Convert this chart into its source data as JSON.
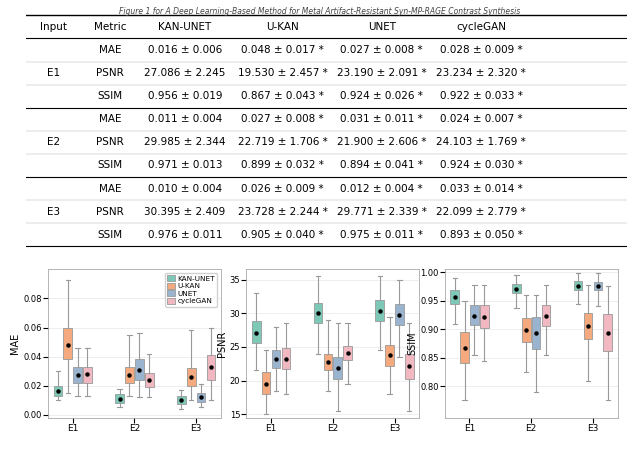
{
  "table": {
    "columns": [
      "Input",
      "Metric",
      "KAN-UNET",
      "U-KAN",
      "UNET",
      "cycleGAN"
    ],
    "rows": [
      [
        "E1",
        "MAE",
        "0.016 ± 0.006",
        "0.048 ± 0.017 *",
        "0.027 ± 0.008 *",
        "0.028 ± 0.009 *"
      ],
      [
        "E1",
        "PSNR",
        "27.086 ± 2.245",
        "19.530 ± 2.457 *",
        "23.190 ± 2.091 *",
        "23.234 ± 2.320 *"
      ],
      [
        "E1",
        "SSIM",
        "0.956 ± 0.019",
        "0.867 ± 0.043 *",
        "0.924 ± 0.026 *",
        "0.922 ± 0.033 *"
      ],
      [
        "E2",
        "MAE",
        "0.011 ± 0.004",
        "0.027 ± 0.008 *",
        "0.031 ± 0.011 *",
        "0.024 ± 0.007 *"
      ],
      [
        "E2",
        "PSNR",
        "29.985 ± 2.344",
        "22.719 ± 1.706 *",
        "21.900 ± 2.606 *",
        "24.103 ± 1.769 *"
      ],
      [
        "E2",
        "SSIM",
        "0.971 ± 0.013",
        "0.899 ± 0.032 *",
        "0.894 ± 0.041 *",
        "0.924 ± 0.030 *"
      ],
      [
        "E3",
        "MAE",
        "0.010 ± 0.004",
        "0.026 ± 0.009 *",
        "0.012 ± 0.004 *",
        "0.033 ± 0.014 *"
      ],
      [
        "E3",
        "PSNR",
        "30.395 ± 2.409",
        "23.728 ± 2.244 *",
        "29.771 ± 2.339 *",
        "22.099 ± 2.779 *"
      ],
      [
        "E3",
        "SSIM",
        "0.976 ± 0.011",
        "0.905 ± 0.040 *",
        "0.975 ± 0.011 *",
        "0.893 ± 0.050 *"
      ]
    ]
  },
  "boxplot": {
    "methods": [
      "KAN-UNET",
      "U-KAN",
      "UNET",
      "cycleGAN"
    ],
    "colors": [
      "#7ec8b8",
      "#f4a97e",
      "#9ab4d0",
      "#f2b8c2"
    ],
    "experiments": [
      "E1",
      "E2",
      "E3"
    ],
    "MAE": {
      "KAN-UNET": {
        "E1": {
          "mean": 0.016,
          "q1": 0.013,
          "q3": 0.02,
          "whislo": 0.01,
          "whishi": 0.03
        },
        "E2": {
          "mean": 0.011,
          "q1": 0.008,
          "q3": 0.014,
          "whislo": 0.005,
          "whishi": 0.018
        },
        "E3": {
          "mean": 0.01,
          "q1": 0.007,
          "q3": 0.013,
          "whislo": 0.004,
          "whishi": 0.017
        }
      },
      "U-KAN": {
        "E1": {
          "mean": 0.048,
          "q1": 0.038,
          "q3": 0.06,
          "whislo": 0.015,
          "whishi": 0.093
        },
        "E2": {
          "mean": 0.027,
          "q1": 0.022,
          "q3": 0.033,
          "whislo": 0.013,
          "whishi": 0.055
        },
        "E3": {
          "mean": 0.026,
          "q1": 0.02,
          "q3": 0.032,
          "whislo": 0.01,
          "whishi": 0.058
        }
      },
      "UNET": {
        "E1": {
          "mean": 0.027,
          "q1": 0.022,
          "q3": 0.033,
          "whislo": 0.013,
          "whishi": 0.046
        },
        "E2": {
          "mean": 0.031,
          "q1": 0.024,
          "q3": 0.038,
          "whislo": 0.012,
          "whishi": 0.056
        },
        "E3": {
          "mean": 0.012,
          "q1": 0.009,
          "q3": 0.015,
          "whislo": 0.005,
          "whishi": 0.021
        }
      },
      "cycleGAN": {
        "E1": {
          "mean": 0.028,
          "q1": 0.022,
          "q3": 0.033,
          "whislo": 0.013,
          "whishi": 0.046
        },
        "E2": {
          "mean": 0.024,
          "q1": 0.019,
          "q3": 0.029,
          "whislo": 0.012,
          "whishi": 0.042
        },
        "E3": {
          "mean": 0.033,
          "q1": 0.024,
          "q3": 0.041,
          "whislo": 0.01,
          "whishi": 0.06
        }
      }
    },
    "PSNR": {
      "KAN-UNET": {
        "E1": {
          "mean": 27.086,
          "q1": 25.5,
          "q3": 28.8,
          "whislo": 21.5,
          "whishi": 33.0
        },
        "E2": {
          "mean": 29.985,
          "q1": 28.5,
          "q3": 31.5,
          "whislo": 24.0,
          "whishi": 35.5
        },
        "E3": {
          "mean": 30.395,
          "q1": 28.8,
          "q3": 32.0,
          "whislo": 24.5,
          "whishi": 35.5
        }
      },
      "U-KAN": {
        "E1": {
          "mean": 19.53,
          "q1": 18.0,
          "q3": 21.2,
          "whislo": 15.0,
          "whishi": 24.5
        },
        "E2": {
          "mean": 22.719,
          "q1": 21.5,
          "q3": 23.9,
          "whislo": 18.5,
          "whishi": 29.0
        },
        "E3": {
          "mean": 23.728,
          "q1": 22.2,
          "q3": 25.3,
          "whislo": 18.0,
          "whishi": 29.5
        }
      },
      "UNET": {
        "E1": {
          "mean": 23.19,
          "q1": 21.8,
          "q3": 24.6,
          "whislo": 18.5,
          "whishi": 28.0
        },
        "E2": {
          "mean": 21.9,
          "q1": 20.2,
          "q3": 23.5,
          "whislo": 15.5,
          "whishi": 28.5
        },
        "E3": {
          "mean": 29.771,
          "q1": 28.2,
          "q3": 31.4,
          "whislo": 23.5,
          "whishi": 35.0
        }
      },
      "cycleGAN": {
        "E1": {
          "mean": 23.234,
          "q1": 21.7,
          "q3": 24.8,
          "whislo": 18.0,
          "whishi": 28.5
        },
        "E2": {
          "mean": 24.103,
          "q1": 23.0,
          "q3": 25.2,
          "whislo": 19.5,
          "whishi": 28.5
        },
        "E3": {
          "mean": 22.099,
          "q1": 20.3,
          "q3": 23.9,
          "whislo": 15.5,
          "whishi": 28.5
        }
      }
    },
    "SSIM": {
      "KAN-UNET": {
        "E1": {
          "mean": 0.956,
          "q1": 0.945,
          "q3": 0.968,
          "whislo": 0.91,
          "whishi": 0.99
        },
        "E2": {
          "mean": 0.971,
          "q1": 0.963,
          "q3": 0.98,
          "whislo": 0.938,
          "whishi": 0.995
        },
        "E3": {
          "mean": 0.976,
          "q1": 0.969,
          "q3": 0.984,
          "whislo": 0.945,
          "whishi": 0.998
        }
      },
      "U-KAN": {
        "E1": {
          "mean": 0.867,
          "q1": 0.84,
          "q3": 0.895,
          "whislo": 0.775,
          "whishi": 0.95
        },
        "E2": {
          "mean": 0.899,
          "q1": 0.878,
          "q3": 0.92,
          "whislo": 0.825,
          "whishi": 0.96
        },
        "E3": {
          "mean": 0.905,
          "q1": 0.882,
          "q3": 0.929,
          "whislo": 0.81,
          "whishi": 0.977
        }
      },
      "UNET": {
        "E1": {
          "mean": 0.924,
          "q1": 0.907,
          "q3": 0.942,
          "whislo": 0.855,
          "whishi": 0.977
        },
        "E2": {
          "mean": 0.894,
          "q1": 0.866,
          "q3": 0.922,
          "whislo": 0.79,
          "whishi": 0.96
        },
        "E3": {
          "mean": 0.975,
          "q1": 0.968,
          "q3": 0.983,
          "whislo": 0.94,
          "whishi": 0.998
        }
      },
      "cycleGAN": {
        "E1": {
          "mean": 0.922,
          "q1": 0.902,
          "q3": 0.942,
          "whislo": 0.845,
          "whishi": 0.977
        },
        "E2": {
          "mean": 0.924,
          "q1": 0.906,
          "q3": 0.943,
          "whislo": 0.855,
          "whishi": 0.978
        },
        "E3": {
          "mean": 0.893,
          "q1": 0.862,
          "q3": 0.926,
          "whislo": 0.775,
          "whishi": 0.975
        }
      }
    }
  },
  "figure_title": "Figure 1 for A Deep Learning-Based Method for Metal Artifact-Resistant Syn-MP-RAGE Contrast Synthesis"
}
